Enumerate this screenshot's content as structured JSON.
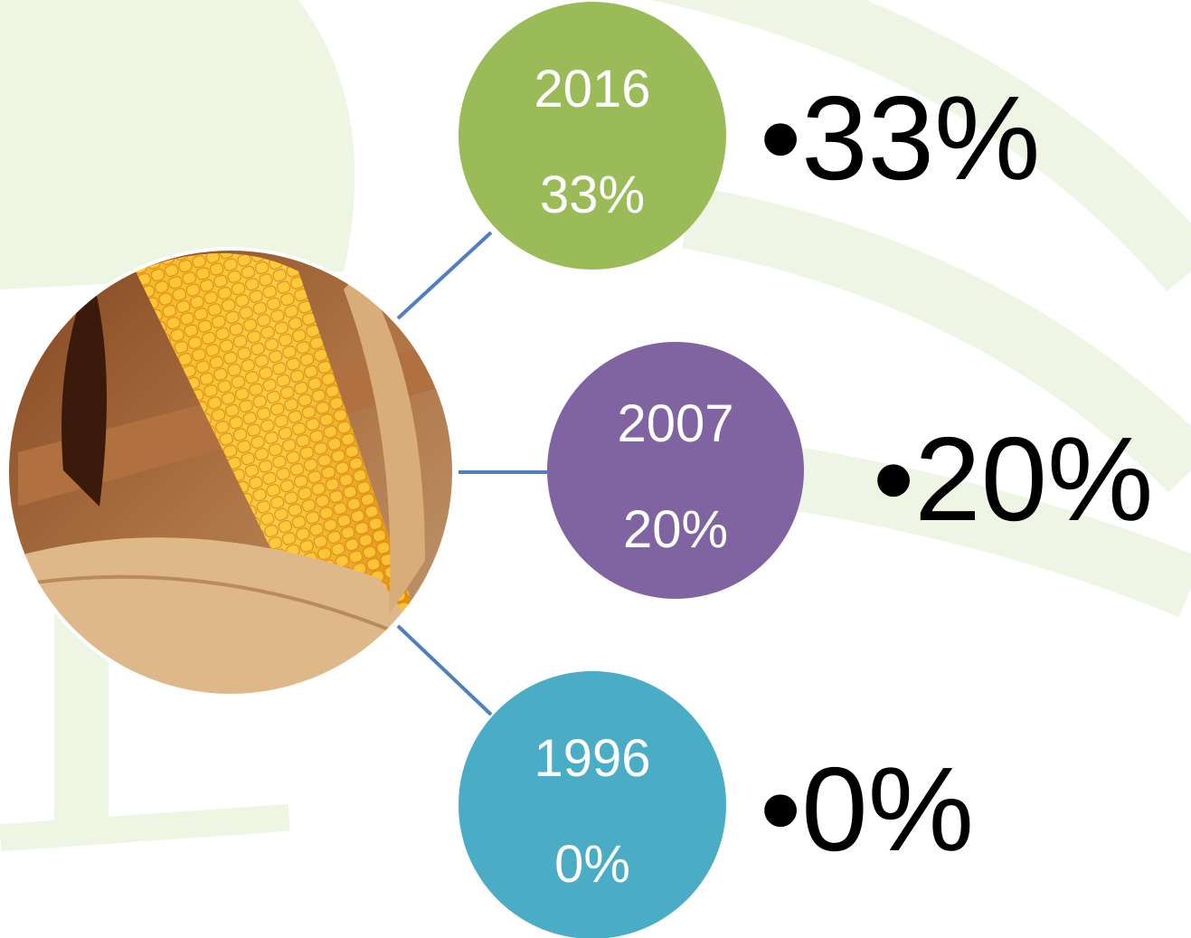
{
  "nodes": [
    {
      "year": "2016",
      "label": "33%",
      "bullet": "33%"
    },
    {
      "year": "2007",
      "label": "20%",
      "bullet": "20%"
    },
    {
      "year": "1996",
      "label": "0%",
      "bullet": "0%"
    }
  ]
}
